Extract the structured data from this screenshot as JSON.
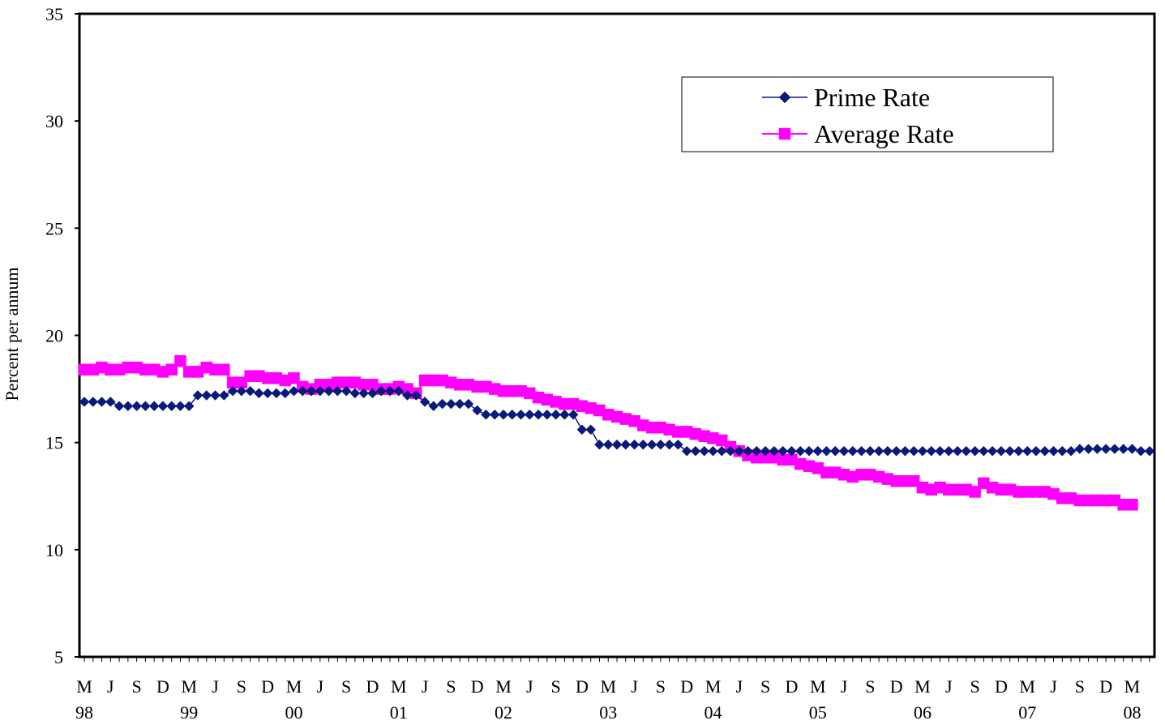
{
  "chart_data": {
    "type": "line",
    "title": "",
    "xlabel": "",
    "ylabel": "Percent per annum",
    "ylim": [
      5,
      35
    ],
    "yticks": [
      5,
      10,
      15,
      20,
      25,
      30,
      35
    ],
    "x_tick_labels": [
      {
        "month": "M",
        "year": "98"
      },
      {
        "month": "J",
        "year": ""
      },
      {
        "month": "S",
        "year": ""
      },
      {
        "month": "D",
        "year": ""
      },
      {
        "month": "M",
        "year": "99"
      },
      {
        "month": "J",
        "year": ""
      },
      {
        "month": "S",
        "year": ""
      },
      {
        "month": "D",
        "year": ""
      },
      {
        "month": "M",
        "year": "00"
      },
      {
        "month": "J",
        "year": ""
      },
      {
        "month": "S",
        "year": ""
      },
      {
        "month": "D",
        "year": ""
      },
      {
        "month": "M",
        "year": "01"
      },
      {
        "month": "J",
        "year": ""
      },
      {
        "month": "S",
        "year": ""
      },
      {
        "month": "D",
        "year": ""
      },
      {
        "month": "M",
        "year": "02"
      },
      {
        "month": "J",
        "year": ""
      },
      {
        "month": "S",
        "year": ""
      },
      {
        "month": "D",
        "year": ""
      },
      {
        "month": "M",
        "year": "03"
      },
      {
        "month": "J",
        "year": ""
      },
      {
        "month": "S",
        "year": ""
      },
      {
        "month": "D",
        "year": ""
      },
      {
        "month": "M",
        "year": "04"
      },
      {
        "month": "J",
        "year": ""
      },
      {
        "month": "S",
        "year": ""
      },
      {
        "month": "D",
        "year": ""
      },
      {
        "month": "M",
        "year": "05"
      },
      {
        "month": "J",
        "year": ""
      },
      {
        "month": "S",
        "year": ""
      },
      {
        "month": "D",
        "year": ""
      },
      {
        "month": "M",
        "year": "06"
      },
      {
        "month": "J",
        "year": ""
      },
      {
        "month": "S",
        "year": ""
      },
      {
        "month": "D",
        "year": ""
      },
      {
        "month": "M",
        "year": "07"
      },
      {
        "month": "J",
        "year": ""
      },
      {
        "month": "S",
        "year": ""
      },
      {
        "month": "D",
        "year": ""
      },
      {
        "month": "M",
        "year": "08"
      }
    ],
    "grid": false,
    "legend_position": "top-right",
    "series": [
      {
        "name": "Prime Rate",
        "color": "#0a1a7a",
        "marker": "diamond",
        "values": [
          16.9,
          16.9,
          16.9,
          16.9,
          16.7,
          16.7,
          16.7,
          16.7,
          16.7,
          16.7,
          16.7,
          16.7,
          16.7,
          17.2,
          17.2,
          17.2,
          17.2,
          17.4,
          17.4,
          17.4,
          17.3,
          17.3,
          17.3,
          17.3,
          17.4,
          17.4,
          17.4,
          17.4,
          17.4,
          17.4,
          17.4,
          17.3,
          17.3,
          17.3,
          17.4,
          17.4,
          17.4,
          17.2,
          17.2,
          16.9,
          16.7,
          16.8,
          16.8,
          16.8,
          16.8,
          16.5,
          16.3,
          16.3,
          16.3,
          16.3,
          16.3,
          16.3,
          16.3,
          16.3,
          16.3,
          16.3,
          16.3,
          15.6,
          15.6,
          14.9,
          14.9,
          14.9,
          14.9,
          14.9,
          14.9,
          14.9,
          14.9,
          14.9,
          14.9,
          14.6,
          14.6,
          14.6,
          14.6,
          14.6,
          14.6,
          14.6,
          14.6,
          14.6,
          14.6,
          14.6,
          14.6,
          14.6,
          14.6,
          14.6,
          14.6,
          14.6,
          14.6,
          14.6,
          14.6,
          14.6,
          14.6,
          14.6,
          14.6,
          14.6,
          14.6,
          14.6,
          14.6,
          14.6,
          14.6,
          14.6,
          14.6,
          14.6,
          14.6,
          14.6,
          14.6,
          14.6,
          14.6,
          14.6,
          14.6,
          14.6,
          14.6,
          14.6,
          14.6,
          14.6,
          14.7,
          14.7,
          14.7,
          14.7,
          14.7,
          14.7,
          14.7,
          14.6,
          14.6
        ]
      },
      {
        "name": "Average Rate",
        "color": "#ff00ff",
        "marker": "square",
        "values": [
          18.4,
          18.4,
          18.5,
          18.4,
          18.4,
          18.5,
          18.5,
          18.4,
          18.4,
          18.3,
          18.4,
          18.8,
          18.3,
          18.3,
          18.5,
          18.4,
          18.4,
          17.8,
          17.8,
          18.1,
          18.1,
          18.0,
          18.0,
          17.9,
          18.0,
          17.6,
          17.5,
          17.7,
          17.7,
          17.8,
          17.8,
          17.8,
          17.7,
          17.7,
          17.5,
          17.5,
          17.6,
          17.5,
          17.3,
          17.9,
          17.9,
          17.9,
          17.8,
          17.7,
          17.7,
          17.6,
          17.6,
          17.5,
          17.4,
          17.4,
          17.4,
          17.3,
          17.1,
          17.0,
          16.9,
          16.8,
          16.8,
          16.7,
          16.6,
          16.5,
          16.3,
          16.2,
          16.1,
          16.0,
          15.8,
          15.7,
          15.7,
          15.6,
          15.5,
          15.5,
          15.4,
          15.3,
          15.2,
          15.1,
          14.8,
          14.6,
          14.4,
          14.3,
          14.3,
          14.3,
          14.2,
          14.2,
          14.0,
          13.9,
          13.8,
          13.6,
          13.6,
          13.5,
          13.4,
          13.5,
          13.5,
          13.4,
          13.3,
          13.2,
          13.2,
          13.2,
          12.9,
          12.8,
          12.9,
          12.8,
          12.8,
          12.8,
          12.7,
          13.1,
          12.9,
          12.8,
          12.8,
          12.7,
          12.7,
          12.7,
          12.7,
          12.6,
          12.4,
          12.4,
          12.3,
          12.3,
          12.3,
          12.3,
          12.3,
          12.1,
          12.1
        ]
      }
    ]
  }
}
